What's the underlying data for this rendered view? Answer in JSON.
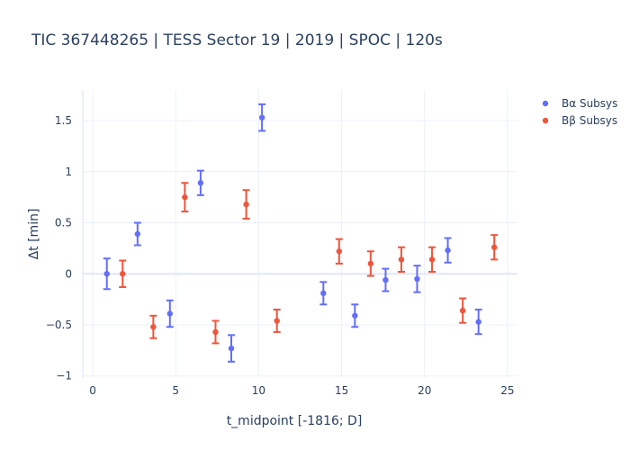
{
  "chart_data": {
    "type": "scatter",
    "title": "TIC 367448265 | TESS Sector 19 | 2019 | SPOC | 120s",
    "xlabel": "t_midpoint [-1816; D]",
    "ylabel": "Δt [min]",
    "xlim": [
      -0.6,
      25.6
    ],
    "ylim": [
      -1.02,
      1.8
    ],
    "xticks": [
      0,
      5,
      10,
      15,
      20,
      25
    ],
    "yticks": [
      -1,
      -0.5,
      0,
      0.5,
      1,
      1.5
    ],
    "ytick_labels": [
      "−1",
      "−0.5",
      "0",
      "0.5",
      "1",
      "1.5"
    ],
    "legend_position": "top-right",
    "grid": true,
    "series": [
      {
        "name": "Bα Subsys",
        "color": "#636efa",
        "points": [
          {
            "x": 0.85,
            "y": 0.0,
            "err": 0.15
          },
          {
            "x": 2.7,
            "y": 0.39,
            "err": 0.11
          },
          {
            "x": 4.65,
            "y": -0.39,
            "err": 0.13
          },
          {
            "x": 6.5,
            "y": 0.89,
            "err": 0.12
          },
          {
            "x": 8.35,
            "y": -0.73,
            "err": 0.13
          },
          {
            "x": 10.2,
            "y": 1.53,
            "err": 0.13
          },
          {
            "x": 13.9,
            "y": -0.19,
            "err": 0.11
          },
          {
            "x": 15.8,
            "y": -0.41,
            "err": 0.11
          },
          {
            "x": 17.65,
            "y": -0.06,
            "err": 0.11
          },
          {
            "x": 19.55,
            "y": -0.05,
            "err": 0.13
          },
          {
            "x": 21.4,
            "y": 0.23,
            "err": 0.12
          },
          {
            "x": 23.25,
            "y": -0.47,
            "err": 0.12
          }
        ]
      },
      {
        "name": "Bβ Subsys",
        "color": "#ef553b",
        "points": [
          {
            "x": 1.8,
            "y": 0.0,
            "err": 0.13
          },
          {
            "x": 3.65,
            "y": -0.52,
            "err": 0.11
          },
          {
            "x": 5.55,
            "y": 0.75,
            "err": 0.14
          },
          {
            "x": 7.4,
            "y": -0.57,
            "err": 0.11
          },
          {
            "x": 9.25,
            "y": 0.68,
            "err": 0.14
          },
          {
            "x": 11.1,
            "y": -0.46,
            "err": 0.11
          },
          {
            "x": 14.85,
            "y": 0.22,
            "err": 0.12
          },
          {
            "x": 16.75,
            "y": 0.1,
            "err": 0.12
          },
          {
            "x": 18.6,
            "y": 0.14,
            "err": 0.12
          },
          {
            "x": 20.45,
            "y": 0.14,
            "err": 0.12
          },
          {
            "x": 22.3,
            "y": -0.36,
            "err": 0.12
          },
          {
            "x": 24.2,
            "y": 0.26,
            "err": 0.12
          }
        ]
      }
    ]
  }
}
